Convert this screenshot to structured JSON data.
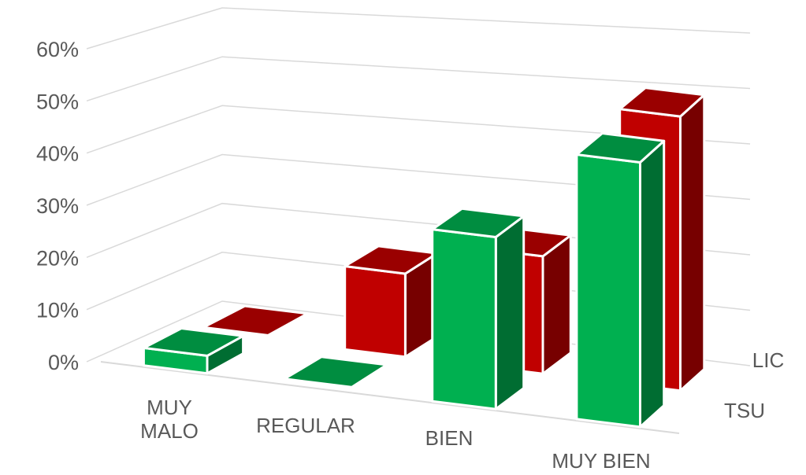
{
  "chart_data": {
    "type": "bar",
    "subtype": "3d-clustered-column",
    "title": "",
    "xlabel": "",
    "ylabel": "",
    "categories": [
      "MUY MALO",
      "REGULAR",
      "BIEN",
      "MUY BIEN"
    ],
    "category_label_lines": [
      [
        "MUY",
        "MALO"
      ],
      [
        "REGULAR"
      ],
      [
        "BIEN"
      ],
      [
        "MUY BIEN"
      ]
    ],
    "series": [
      {
        "name": "TSU",
        "values": [
          0.04,
          0.0,
          0.39,
          0.6
        ],
        "color": "#00b050"
      },
      {
        "name": "LIC",
        "values": [
          0.0,
          0.17,
          0.24,
          0.56
        ],
        "color": "#c00000"
      }
    ],
    "y_ticks": [
      "0%",
      "10%",
      "20%",
      "30%",
      "40%",
      "50%",
      "60%"
    ],
    "ylim": [
      0,
      0.6
    ],
    "grid": true,
    "legend": "depth-axis-right"
  }
}
